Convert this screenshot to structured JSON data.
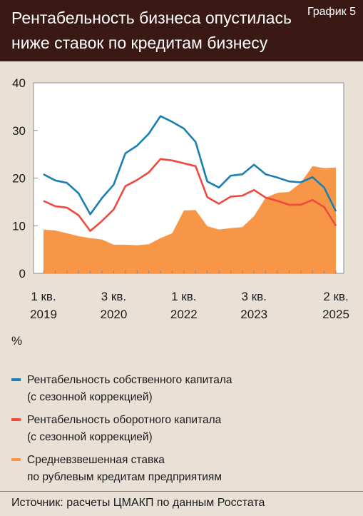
{
  "header": {
    "title_line1": "Рентабельность бизнеса опустилась",
    "title_line2": "ниже ставок по кредитам бизнесу",
    "figure_label": "График 5"
  },
  "unit": "%",
  "source": "Источник: расчеты ЦМАКП по данным Росстата",
  "legend": [
    {
      "line1": "Рентабельность собственного капитала",
      "line2": "(с сезонной коррекцией)",
      "color": "#1a7fb0"
    },
    {
      "line1": "Рентабельность оборотного капитала",
      "line2": "(с сезонной коррекцией)",
      "color": "#ee4a3e"
    },
    {
      "line1": "Средневзвешенная ставка",
      "line2": "по рублевым кредитам предприятиям",
      "color": "#f79646"
    }
  ],
  "chart_data": {
    "type": "line",
    "x": [
      "2019Q1",
      "2019Q2",
      "2019Q3",
      "2019Q4",
      "2020Q1",
      "2020Q2",
      "2020Q3",
      "2020Q4",
      "2021Q1",
      "2021Q2",
      "2021Q3",
      "2021Q4",
      "2022Q1",
      "2022Q2",
      "2022Q3",
      "2022Q4",
      "2023Q1",
      "2023Q2",
      "2023Q3",
      "2023Q4",
      "2024Q1",
      "2024Q2",
      "2024Q3",
      "2024Q4",
      "2025Q1",
      "2025Q2"
    ],
    "x_tick_labels": [
      {
        "index": 0,
        "line1": "1 кв.",
        "line2": "2019"
      },
      {
        "index": 6,
        "line1": "3 кв.",
        "line2": "2020"
      },
      {
        "index": 12,
        "line1": "1 кв.",
        "line2": "2022"
      },
      {
        "index": 18,
        "line1": "3 кв.",
        "line2": "2023"
      },
      {
        "index": 25,
        "line1": "2 кв.",
        "line2": "2025"
      }
    ],
    "y_ticks": [
      "0",
      "10",
      "20",
      "30",
      "40"
    ],
    "ylim": [
      0,
      40
    ],
    "grid": false,
    "series": [
      {
        "type": "line",
        "color": "#1a7fb0",
        "values": [
          20.8,
          19.5,
          19.0,
          16.8,
          12.4,
          15.8,
          18.6,
          25.2,
          26.8,
          29.3,
          33.0,
          31.8,
          30.4,
          27.6,
          19.3,
          18.0,
          20.5,
          20.8,
          22.8,
          20.8,
          20.1,
          19.3,
          19.1,
          20.2,
          18.0,
          13.0
        ]
      },
      {
        "type": "line",
        "color": "#ee4a3e",
        "values": [
          15.2,
          14.1,
          13.8,
          12.2,
          8.9,
          11.0,
          13.4,
          18.3,
          19.6,
          21.2,
          24.0,
          23.7,
          23.1,
          22.5,
          16.0,
          14.6,
          16.1,
          16.3,
          17.5,
          15.9,
          15.2,
          14.4,
          14.4,
          15.4,
          13.9,
          10.0
        ]
      },
      {
        "type": "area",
        "color": "#f79646",
        "values": [
          9.2,
          9.0,
          8.4,
          7.8,
          7.4,
          7.1,
          6.0,
          6.0,
          5.9,
          6.1,
          7.4,
          8.4,
          13.2,
          13.3,
          9.9,
          9.2,
          9.5,
          9.7,
          12.0,
          15.9,
          16.9,
          17.1,
          19.0,
          22.5,
          22.1,
          22.2
        ]
      }
    ]
  }
}
